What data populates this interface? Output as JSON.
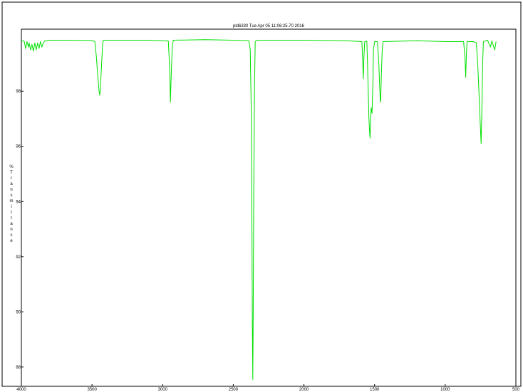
{
  "chart_data": {
    "type": "line",
    "title": "pld6330   Tue Apr 05 11:06:25.70 2016",
    "ylabel": "% Transmittance",
    "ylabel_chars": [
      "%",
      "T",
      "r",
      "a",
      "n",
      "s",
      "m",
      "i",
      "t",
      "t",
      "a",
      "n",
      "c",
      "e"
    ],
    "xlim": [
      4000,
      500
    ],
    "ylim": [
      87.3,
      100.25
    ],
    "x_ticks": [
      "4000",
      "3500",
      "3000",
      "2500",
      "2000",
      "1500",
      "1000",
      "500"
    ],
    "y_ticks": [
      "98",
      "96",
      "94",
      "92",
      "90",
      "88"
    ],
    "grid": false,
    "colors": {
      "series": "#00e000",
      "axes": "#000000",
      "background": "#ffffff"
    },
    "series": [
      {
        "points": [
          [
            4000,
            99.85
          ],
          [
            3980,
            99.8
          ],
          [
            3970,
            99.55
          ],
          [
            3960,
            99.8
          ],
          [
            3950,
            99.6
          ],
          [
            3945,
            99.75
          ],
          [
            3935,
            99.5
          ],
          [
            3925,
            99.7
          ],
          [
            3915,
            99.45
          ],
          [
            3905,
            99.75
          ],
          [
            3895,
            99.5
          ],
          [
            3885,
            99.75
          ],
          [
            3875,
            99.55
          ],
          [
            3865,
            99.8
          ],
          [
            3855,
            99.6
          ],
          [
            3845,
            99.75
          ],
          [
            3835,
            99.82
          ],
          [
            3800,
            99.85
          ],
          [
            3700,
            99.85
          ],
          [
            3500,
            99.84
          ],
          [
            3480,
            99.8
          ],
          [
            3470,
            99.3
          ],
          [
            3460,
            98.6
          ],
          [
            3450,
            98.0
          ],
          [
            3445,
            97.85
          ],
          [
            3440,
            98.2
          ],
          [
            3432,
            99.0
          ],
          [
            3425,
            99.7
          ],
          [
            3420,
            99.85
          ],
          [
            3300,
            99.85
          ],
          [
            3100,
            99.85
          ],
          [
            2960,
            99.82
          ],
          [
            2950,
            98.8
          ],
          [
            2945,
            97.6
          ],
          [
            2940,
            98.5
          ],
          [
            2932,
            99.6
          ],
          [
            2925,
            99.85
          ],
          [
            2700,
            99.87
          ],
          [
            2500,
            99.85
          ],
          [
            2390,
            99.83
          ],
          [
            2380,
            99.5
          ],
          [
            2372,
            97.0
          ],
          [
            2368,
            93.0
          ],
          [
            2365,
            89.5
          ],
          [
            2362,
            87.55
          ],
          [
            2360,
            89.0
          ],
          [
            2355,
            94.5
          ],
          [
            2350,
            98.0
          ],
          [
            2345,
            99.8
          ],
          [
            2330,
            99.85
          ],
          [
            2000,
            99.85
          ],
          [
            1700,
            99.83
          ],
          [
            1590,
            99.8
          ],
          [
            1585,
            99.2
          ],
          [
            1580,
            98.45
          ],
          [
            1575,
            99.3
          ],
          [
            1570,
            99.8
          ],
          [
            1555,
            99.82
          ],
          [
            1550,
            99.0
          ],
          [
            1545,
            98.0
          ],
          [
            1540,
            97.0
          ],
          [
            1535,
            96.5
          ],
          [
            1532,
            96.3
          ],
          [
            1528,
            96.9
          ],
          [
            1524,
            97.4
          ],
          [
            1518,
            97.2
          ],
          [
            1512,
            98.3
          ],
          [
            1508,
            99.5
          ],
          [
            1500,
            99.8
          ],
          [
            1480,
            99.8
          ],
          [
            1470,
            99.0
          ],
          [
            1465,
            98.3
          ],
          [
            1460,
            97.7
          ],
          [
            1457,
            97.6
          ],
          [
            1452,
            98.6
          ],
          [
            1446,
            99.5
          ],
          [
            1440,
            99.8
          ],
          [
            1200,
            99.83
          ],
          [
            1000,
            99.8
          ],
          [
            870,
            99.8
          ],
          [
            860,
            99.2
          ],
          [
            855,
            98.5
          ],
          [
            850,
            99.4
          ],
          [
            845,
            99.8
          ],
          [
            800,
            99.8
          ],
          [
            780,
            99.75
          ],
          [
            770,
            99.0
          ],
          [
            760,
            97.8
          ],
          [
            752,
            96.8
          ],
          [
            746,
            96.1
          ],
          [
            740,
            97.5
          ],
          [
            735,
            99.0
          ],
          [
            730,
            99.8
          ],
          [
            700,
            99.85
          ],
          [
            680,
            99.6
          ],
          [
            670,
            99.82
          ],
          [
            650,
            99.5
          ],
          [
            640,
            99.8
          ]
        ]
      }
    ]
  }
}
